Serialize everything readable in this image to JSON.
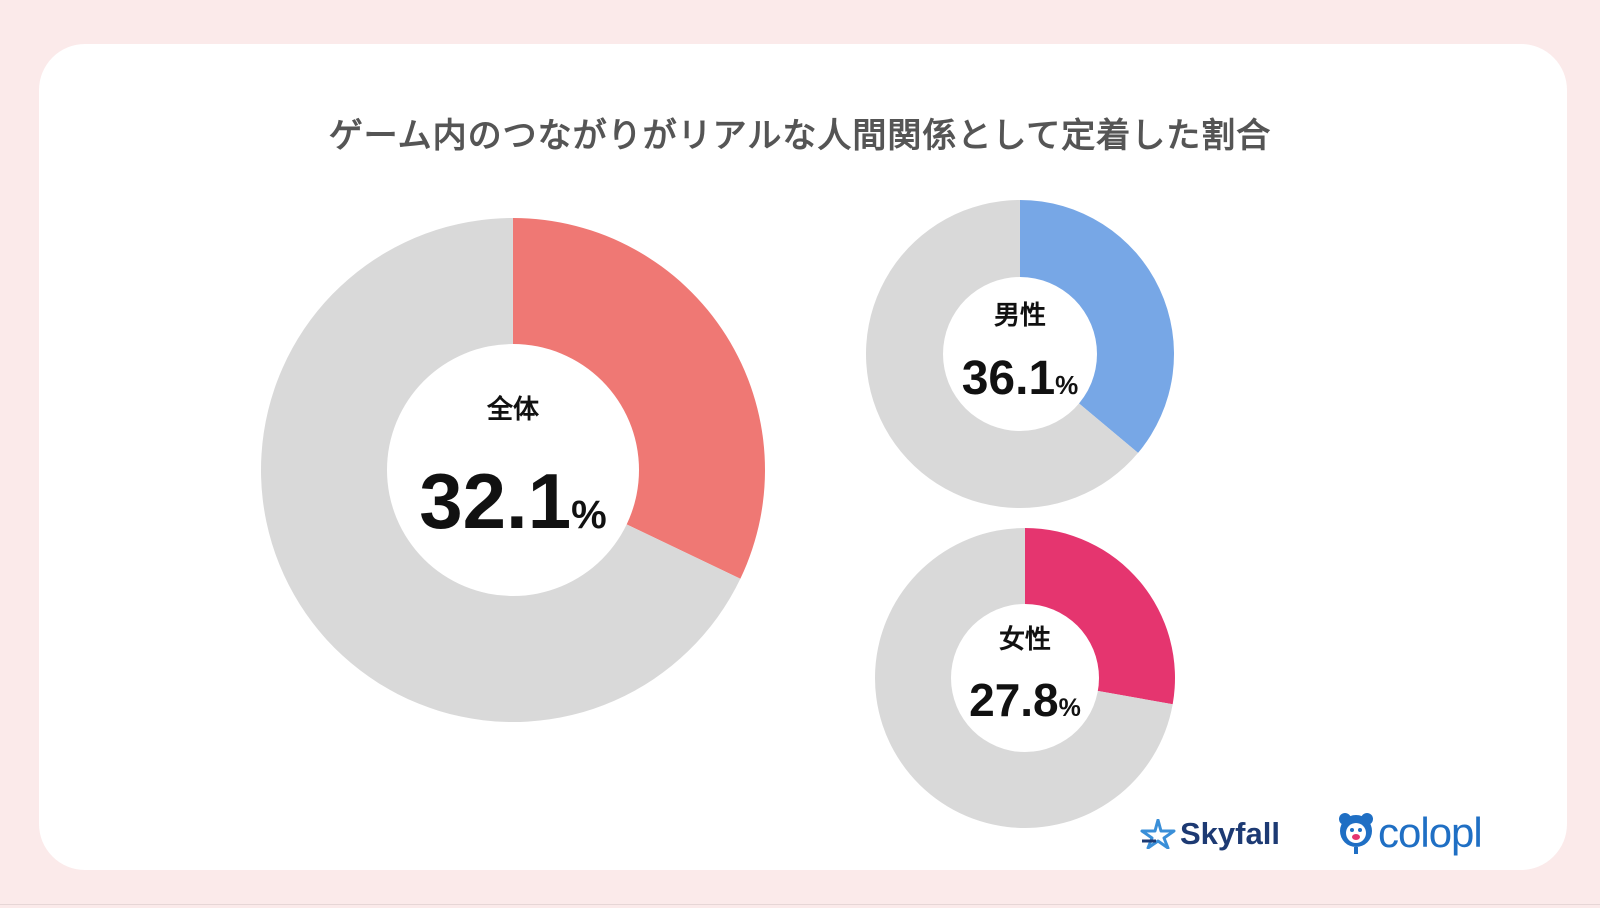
{
  "title": "ゲーム内のつながりがリアルな人間関係として定着した割合",
  "chart_data": [
    {
      "type": "pie",
      "variant": "donut",
      "label": "全体",
      "value_text": "32.1",
      "unit": "%",
      "value": 32.1,
      "color": "#ef7874",
      "rest_color": "#d9d9d9"
    },
    {
      "type": "pie",
      "variant": "donut",
      "label": "男性",
      "value_text": "36.1",
      "unit": "%",
      "value": 36.1,
      "color": "#77a7e6",
      "rest_color": "#d9d9d9"
    },
    {
      "type": "pie",
      "variant": "donut",
      "label": "女性",
      "value_text": "27.8",
      "unit": "%",
      "value": 27.8,
      "color": "#e5356f",
      "rest_color": "#d9d9d9"
    }
  ],
  "logos": {
    "skyfall": "Skyfall",
    "colopl": "colopl"
  }
}
